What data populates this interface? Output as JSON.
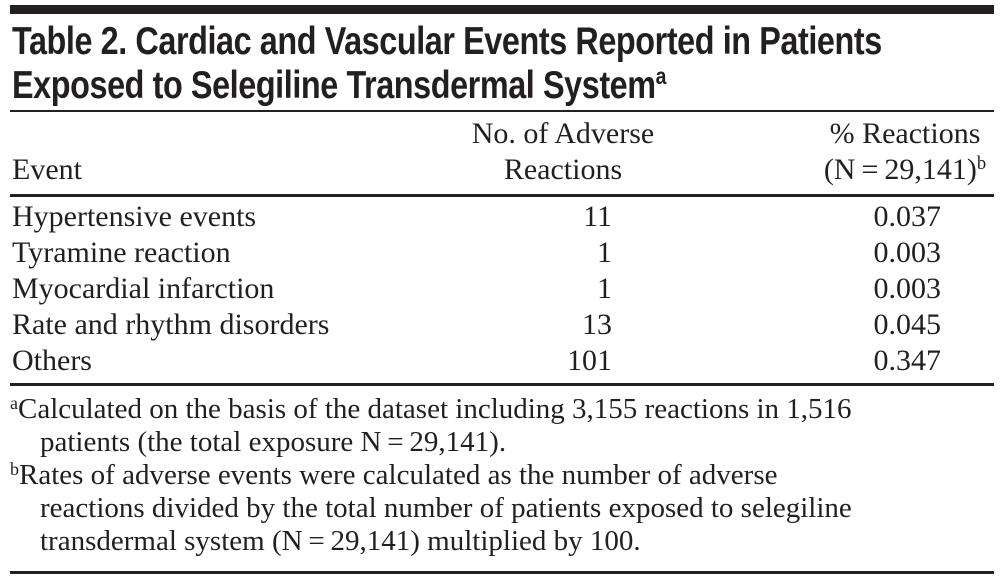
{
  "colors": {
    "ink": "#231f20",
    "background": "#ffffff"
  },
  "title": {
    "text": "Table 2. Cardiac and Vascular Events Reported in Patients\nExposed to Selegiline Transdermal System",
    "footnote_marker": "a"
  },
  "columns": {
    "event": "Event",
    "reactions": "No. of Adverse\nReactions",
    "pct_line1": "% Reactions",
    "pct_line2": "(N = 29,141)",
    "pct_footnote_marker": "b"
  },
  "rows": [
    {
      "event": "Hypertensive events",
      "n": "11",
      "pct": "0.037"
    },
    {
      "event": "Tyramine reaction",
      "n": "1",
      "pct": "0.003"
    },
    {
      "event": "Myocardial infarction",
      "n": "1",
      "pct": "0.003"
    },
    {
      "event": "Rate and rhythm disorders",
      "n": "13",
      "pct": "0.045"
    },
    {
      "event": "Others",
      "n": "101",
      "pct": "0.347"
    }
  ],
  "footnotes": [
    {
      "marker": "a",
      "text": "Calculated on the basis of the dataset including 3,155 reactions in 1,516\npatients (the total exposure N = 29,141)."
    },
    {
      "marker": "b",
      "text": "Rates of adverse events were calculated as the number of adverse\nreactions divided by the total number of patients exposed to selegiline\ntransdermal system (N = 29,141) multiplied by 100."
    }
  ]
}
